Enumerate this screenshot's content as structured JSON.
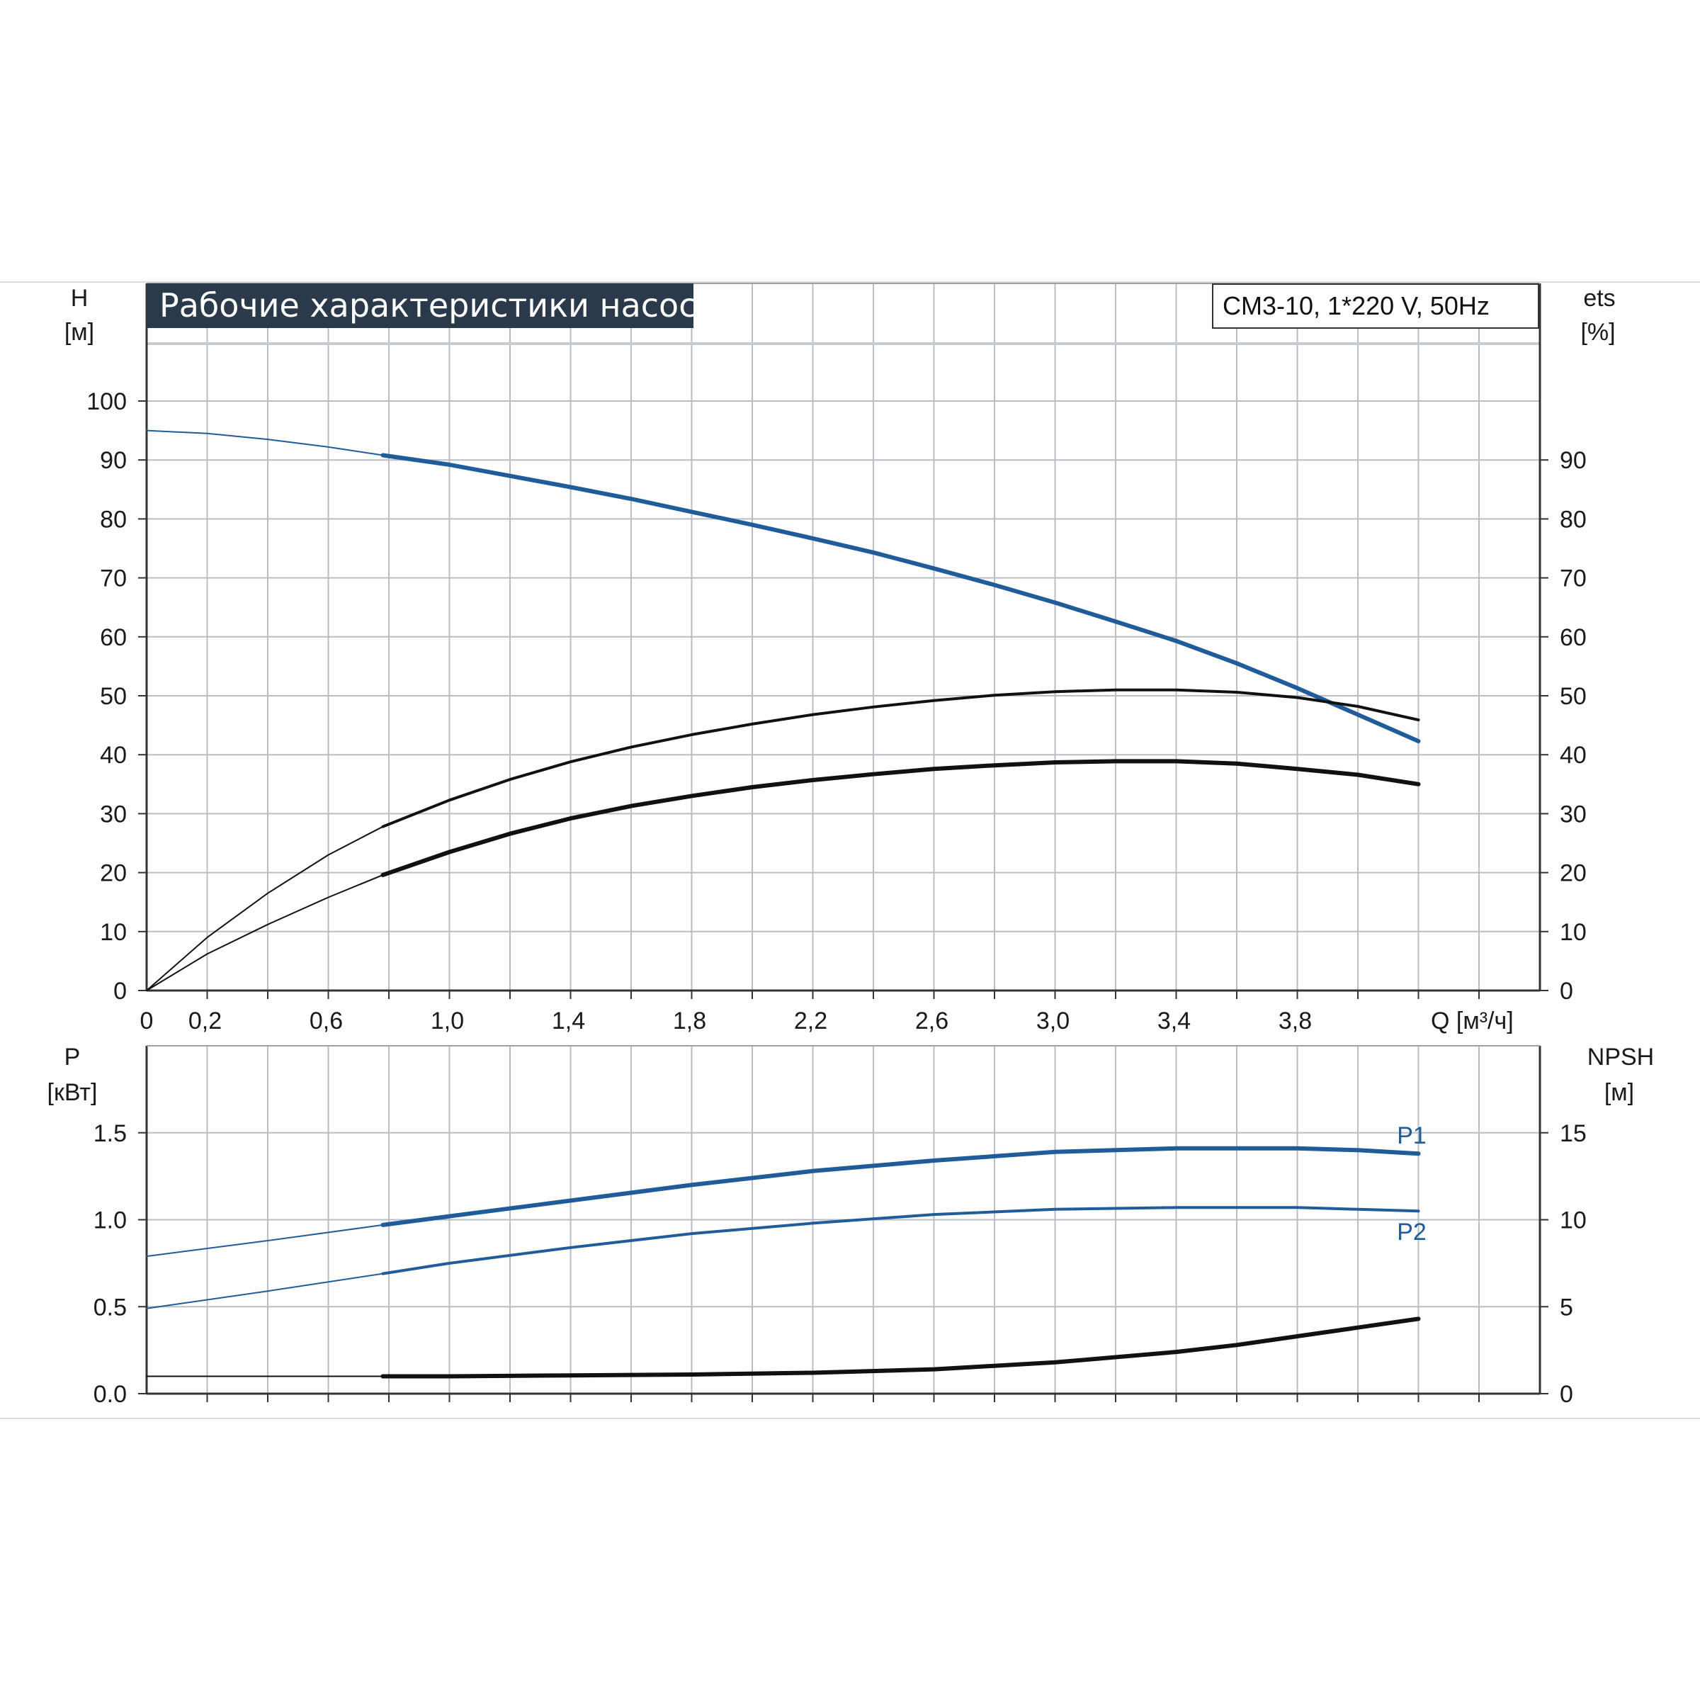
{
  "chart_data": [
    {
      "type": "line",
      "title": "Рабочие характеристики насоса",
      "model": "CM3-10, 1*220 V, 50Hz",
      "x_axis": {
        "label": "Q [м³/ч]",
        "range": [
          0,
          4.6
        ],
        "tick_values": [
          0,
          0.2,
          0.6,
          1.0,
          1.4,
          1.8,
          2.2,
          2.6,
          3.0,
          3.4,
          3.8
        ],
        "tick_labels": [
          "0",
          "0,2",
          "0,6",
          "1,0",
          "1,4",
          "1,8",
          "2,2",
          "2,6",
          "3,0",
          "3,4",
          "3,8"
        ]
      },
      "y_left": {
        "label_top": "H",
        "label_unit": "[м]",
        "range": [
          0,
          100
        ],
        "tick_values": [
          0,
          10,
          20,
          30,
          40,
          50,
          60,
          70,
          80,
          90,
          100
        ],
        "tick_labels": [
          "0",
          "10",
          "20",
          "30",
          "40",
          "50",
          "60",
          "70",
          "80",
          "90",
          "100"
        ]
      },
      "y_right": {
        "label_top": "ets",
        "label_unit": "[%]",
        "range": [
          0,
          100
        ],
        "tick_values": [
          0,
          10,
          20,
          30,
          40,
          50,
          60,
          70,
          80,
          90
        ],
        "tick_labels": [
          "0",
          "10",
          "20",
          "30",
          "40",
          "50",
          "60",
          "70",
          "80",
          "90"
        ]
      },
      "grid": true,
      "series": [
        {
          "color": "#1f5c99",
          "x": [
            0,
            0.2,
            0.4,
            0.6,
            0.78,
            1.0,
            1.2,
            1.4,
            1.6,
            1.8,
            2.0,
            2.2,
            2.4,
            2.6,
            2.8,
            3.0,
            3.2,
            3.4,
            3.6,
            3.8,
            4.0,
            4.2
          ],
          "y": [
            95,
            94.5,
            93.5,
            92.2,
            90.8,
            89.2,
            87.3,
            85.4,
            83.4,
            81.2,
            79.0,
            76.7,
            74.3,
            71.6,
            68.8,
            65.8,
            62.6,
            59.3,
            55.5,
            51.3,
            46.8,
            42.3
          ]
        },
        {
          "color": "#111111",
          "x": [
            0,
            0.2,
            0.4,
            0.6,
            0.78,
            1.0,
            1.2,
            1.4,
            1.6,
            1.8,
            2.0,
            2.2,
            2.4,
            2.6,
            2.8,
            3.0,
            3.2,
            3.4,
            3.6,
            3.8,
            4.0,
            4.2
          ],
          "y": [
            0,
            9.0,
            16.5,
            23.0,
            27.8,
            32.3,
            35.8,
            38.8,
            41.3,
            43.4,
            45.2,
            46.8,
            48.1,
            49.2,
            50.1,
            50.7,
            51.0,
            51.0,
            50.6,
            49.7,
            48.2,
            45.9
          ]
        },
        {
          "color": "#111111",
          "x": [
            0,
            0.2,
            0.4,
            0.6,
            0.78,
            1.0,
            1.2,
            1.4,
            1.6,
            1.8,
            2.0,
            2.2,
            2.4,
            2.6,
            2.8,
            3.0,
            3.2,
            3.4,
            3.6,
            3.8,
            4.0,
            4.2
          ],
          "y": [
            0,
            6.2,
            11.2,
            15.8,
            19.6,
            23.5,
            26.6,
            29.2,
            31.3,
            33.0,
            34.5,
            35.7,
            36.7,
            37.6,
            38.2,
            38.7,
            38.9,
            38.9,
            38.5,
            37.6,
            36.6,
            35.0
          ]
        }
      ]
    },
    {
      "type": "line",
      "x_axis": {
        "range": [
          0,
          4.6
        ]
      },
      "y_left": {
        "label_top": "P",
        "label_unit": "[кВт]",
        "range": [
          0,
          2.0
        ],
        "tick_values": [
          0.0,
          0.5,
          1.0,
          1.5
        ],
        "tick_labels": [
          "0.0",
          "0.5",
          "1.0",
          "1.5"
        ]
      },
      "y_right": {
        "label_top": "NPSH",
        "label_unit": "[м]",
        "range": [
          0,
          20
        ],
        "tick_values": [
          0,
          5,
          10,
          15
        ],
        "tick_labels": [
          "0",
          "5",
          "10",
          "15"
        ]
      },
      "grid": true,
      "series": [
        {
          "name": "P1",
          "color": "#1f5c99",
          "x": [
            0,
            0.4,
            0.78,
            1.0,
            1.4,
            1.8,
            2.2,
            2.6,
            3.0,
            3.4,
            3.6,
            3.8,
            4.0,
            4.2
          ],
          "y": [
            0.79,
            0.88,
            0.97,
            1.02,
            1.11,
            1.2,
            1.28,
            1.34,
            1.39,
            1.41,
            1.41,
            1.41,
            1.4,
            1.38
          ]
        },
        {
          "name": "P2",
          "color": "#1f5c99",
          "x": [
            0,
            0.4,
            0.78,
            1.0,
            1.4,
            1.8,
            2.2,
            2.6,
            3.0,
            3.4,
            3.6,
            3.8,
            4.0,
            4.2
          ],
          "y": [
            0.49,
            0.59,
            0.69,
            0.75,
            0.84,
            0.92,
            0.98,
            1.03,
            1.06,
            1.07,
            1.07,
            1.07,
            1.06,
            1.05
          ]
        },
        {
          "color": "#111111",
          "x": [
            0,
            0.4,
            0.78,
            1.0,
            1.4,
            1.8,
            2.2,
            2.6,
            3.0,
            3.4,
            3.6,
            3.8,
            4.0,
            4.2
          ],
          "y": [
            1.0,
            1.0,
            1.0,
            1.0,
            1.05,
            1.1,
            1.2,
            1.4,
            1.8,
            2.4,
            2.8,
            3.3,
            3.8,
            4.3
          ]
        }
      ]
    }
  ]
}
